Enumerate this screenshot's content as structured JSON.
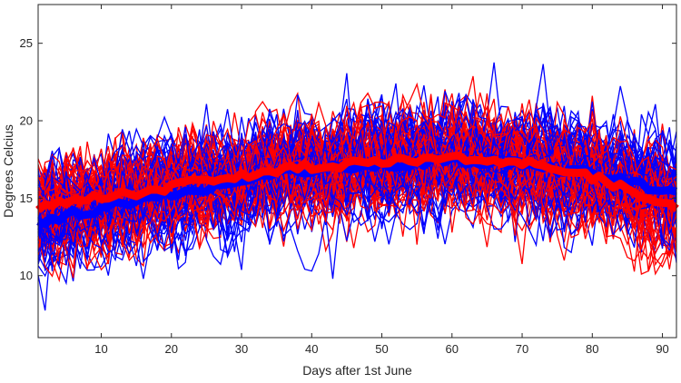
{
  "chart_data": {
    "type": "line",
    "xlabel": "Days after 1st June",
    "ylabel": "Degrees Celcius",
    "xlim": [
      1,
      92
    ],
    "ylim": [
      6,
      27.5
    ],
    "xticks": [
      10,
      20,
      30,
      40,
      50,
      60,
      70,
      80,
      90
    ],
    "yticks": [
      10,
      15,
      20,
      25
    ],
    "grid": false,
    "series": [
      {
        "color": "#0000ff",
        "style": "thick-mean",
        "x": [
          1,
          6,
          11,
          16,
          21,
          26,
          31,
          36,
          41,
          46,
          51,
          56,
          61,
          66,
          71,
          76,
          81,
          86,
          92
        ],
        "y": [
          13.3,
          14.0,
          14.4,
          15.0,
          15.3,
          15.7,
          16.2,
          16.7,
          16.9,
          17.0,
          17.2,
          17.3,
          17.4,
          17.3,
          17.1,
          16.8,
          16.5,
          16.0,
          15.3
        ]
      },
      {
        "color": "#ff0000",
        "style": "thick-mean",
        "x": [
          1,
          6,
          11,
          16,
          21,
          26,
          31,
          36,
          41,
          46,
          51,
          56,
          61,
          66,
          71,
          76,
          81,
          86,
          92
        ],
        "y": [
          14.3,
          14.8,
          15.1,
          15.4,
          15.8,
          16.2,
          16.5,
          16.9,
          17.1,
          17.2,
          17.4,
          17.5,
          17.6,
          17.5,
          17.2,
          16.8,
          16.2,
          15.4,
          14.3
        ]
      }
    ]
  }
}
